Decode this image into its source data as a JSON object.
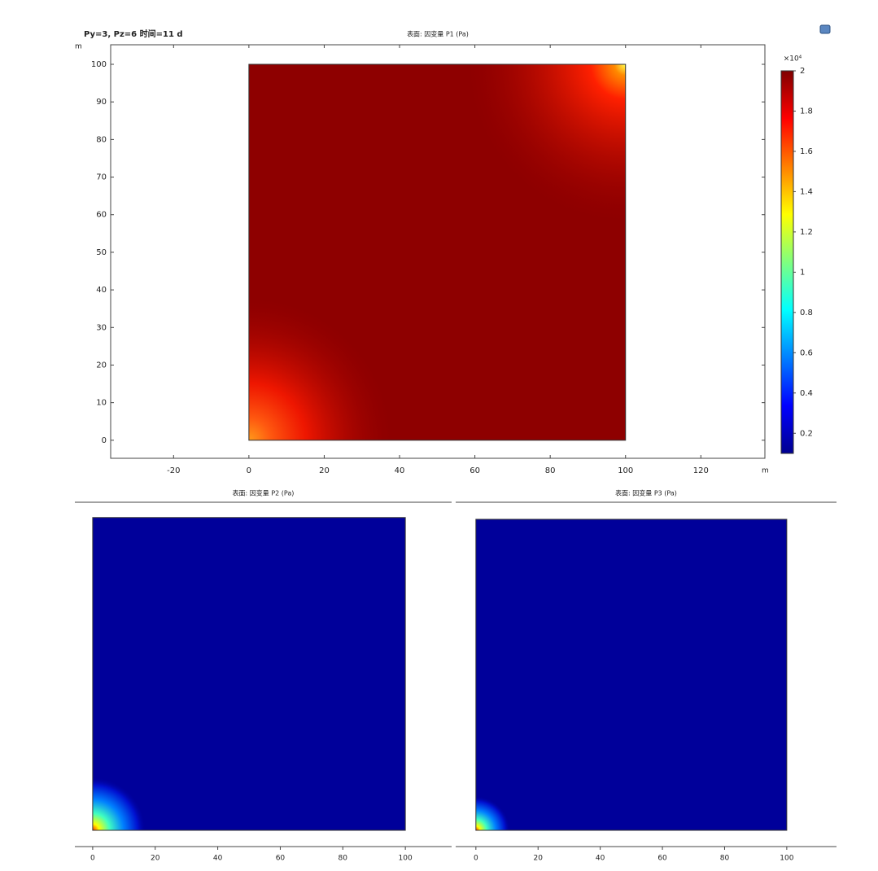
{
  "chart_data": [
    {
      "type": "heatmap",
      "header": "Py=3, Pz=6 时间=11 d",
      "title": "表面: 因变量 P1 (Pa)",
      "x_unit": "m",
      "y_unit": "m",
      "xlim": [
        -36.7,
        137
      ],
      "ylim": [
        -4.8,
        105.2
      ],
      "xticks": [
        -20,
        0,
        20,
        40,
        60,
        80,
        100,
        120
      ],
      "yticks": [
        0,
        10,
        20,
        30,
        40,
        50,
        60,
        70,
        80,
        90,
        100
      ],
      "domain": [
        0,
        100
      ],
      "colormap": "jet",
      "colorbar": {
        "multiplier": "×10⁴",
        "clim": [
          0.1,
          2
        ],
        "ticks": [
          0.2,
          0.4,
          0.6,
          0.8,
          1,
          1.2,
          1.4,
          1.6,
          1.8,
          2
        ]
      }
    },
    {
      "type": "heatmap",
      "title": "表面: 因变量 P2 (Pa)",
      "xlim": [
        -5.7,
        114.8
      ],
      "xticks": [
        0,
        20,
        40,
        60,
        80,
        100
      ],
      "domain": [
        0,
        100
      ],
      "colormap": "jet"
    },
    {
      "type": "heatmap",
      "title": "表面: 因变量 P3 (Pa)",
      "xlim": [
        -6.5,
        116
      ],
      "xticks": [
        0,
        20,
        40,
        60,
        80,
        100
      ],
      "domain": [
        0,
        100
      ],
      "colormap": "jet"
    }
  ]
}
